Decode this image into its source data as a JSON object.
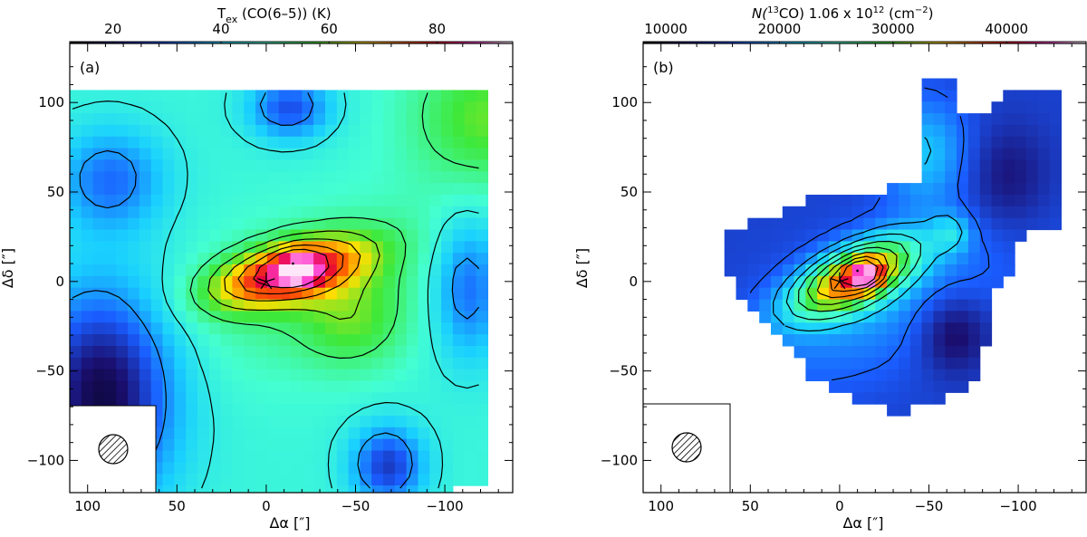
{
  "chart_data": [
    {
      "type": "heatmap",
      "panel_label": "(a)",
      "colorbar": {
        "title_main": "T",
        "title_sub": "ex",
        "title_rest": " (CO(6–5)) (K)",
        "ticks": [
          20,
          40,
          60,
          80
        ],
        "range": [
          12,
          94
        ]
      },
      "xlabel": "Δα [″]",
      "ylabel": "Δδ [″]",
      "xlim": [
        110,
        -138
      ],
      "ylim": [
        -118,
        133
      ],
      "xticks": [
        100,
        50,
        0,
        -50,
        -100
      ],
      "yticks": [
        100,
        50,
        0,
        -50,
        -100
      ],
      "beam_symbol": "hatched-circle",
      "star_marker": [
        0,
        0
      ],
      "peak": {
        "x": -15,
        "y": 10,
        "value": 88
      }
    },
    {
      "type": "heatmap",
      "panel_label": "(b)",
      "colorbar": {
        "title_main": "N(",
        "title_sup": "13",
        "title_rest": "CO)  1.06 x 10",
        "title_exp": "12",
        "title_unit": " (cm",
        "title_unit_exp": "−2",
        "title_close": ")",
        "ticks": [
          10000,
          20000,
          30000,
          40000
        ],
        "range": [
          8000,
          47000
        ]
      },
      "xlabel": "Δα [″]",
      "ylabel": "Δδ [″]",
      "xlim": [
        110,
        -138
      ],
      "ylim": [
        -118,
        133
      ],
      "xticks": [
        100,
        50,
        0,
        -50,
        -100
      ],
      "yticks": [
        100,
        50,
        0,
        -50,
        -100
      ],
      "beam_symbol": "hatched-circle",
      "star_marker": [
        0,
        0
      ],
      "peak": {
        "x": -10,
        "y": 6,
        "value": 46000
      }
    }
  ]
}
